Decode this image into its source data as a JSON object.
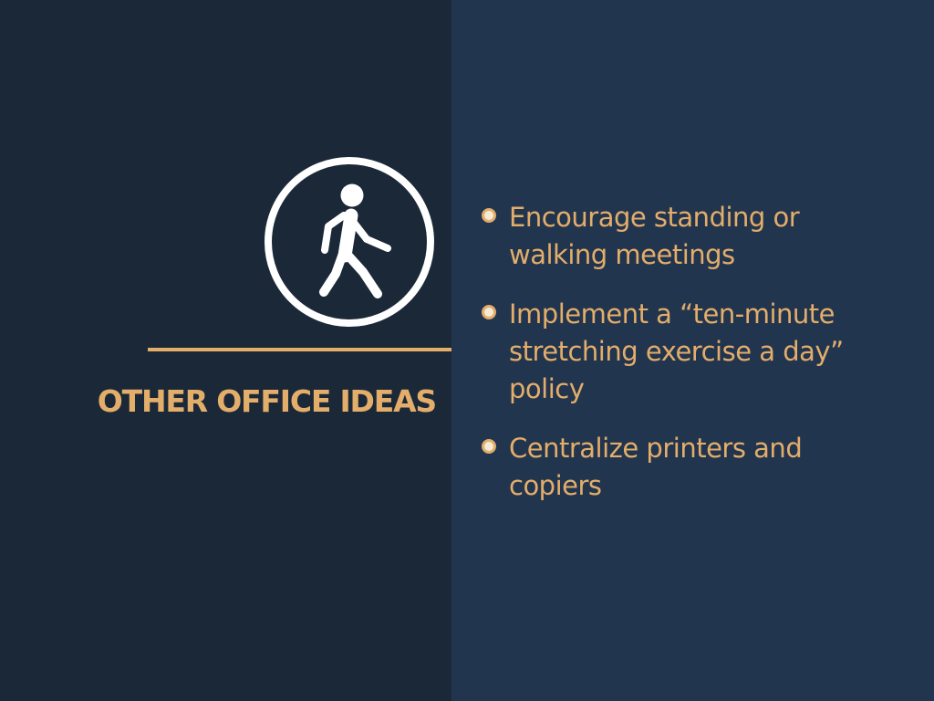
{
  "slide": {
    "title": "OTHER OFFICE IDEAS",
    "icon": "walking-person-icon",
    "colors": {
      "left_background": "#1b2838",
      "right_background": "#22354f",
      "accent": "#e3ad6a",
      "icon": "#ffffff"
    },
    "bullets": [
      {
        "line1": "Encourage standing or",
        "line2": "walking meetings",
        "line3": ""
      },
      {
        "line1": "Implement a “ten-minute",
        "line2": "stretching exercise a day”",
        "line3": "policy"
      },
      {
        "line1": "Centralize printers and",
        "line2": "copiers",
        "line3": ""
      }
    ]
  }
}
